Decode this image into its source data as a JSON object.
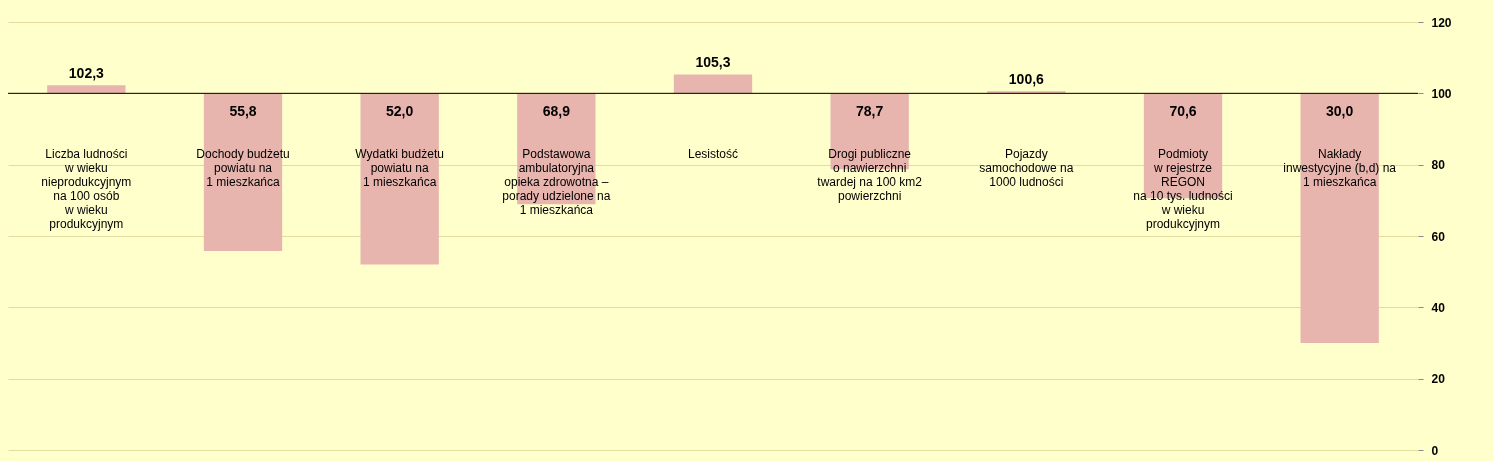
{
  "chart_data": {
    "type": "bar",
    "categories": [
      "Liczba ludności\nw wieku\nnieprodukcyjnym\nna 100 osób\nw wieku\nprodukcyjnym",
      "Dochody budżetu\npowiatu na\n1 mieszkańca",
      "Wydatki budżetu\npowiatu na\n1 mieszkańca",
      "Podstawowa\nambulatoryjna\nopieka zdrowotna –\nporady udzielone na\n1 mieszkańca",
      "Lesistość",
      "Drogi publiczne\no nawierzchni\ntwardej na 100 km2\npowierzchni",
      "Pojazdy\nsamochodowe na\n1000 ludności",
      "Podmioty\nw rejestrze\nREGON\nna 10 tys. ludności\nw wieku\nprodukcyjnym",
      "Nakłady\ninwestycyjne (b,d) na\n1 mieszkańca"
    ],
    "base": [
      100,
      100,
      100,
      100,
      100,
      100,
      100,
      100,
      100
    ],
    "values": [
      2.3,
      -44.2,
      -48.0,
      -31.1,
      5.3,
      -21.3,
      0.6,
      -29.4,
      -70.0
    ],
    "value_labels": [
      "102,3",
      "55,8",
      "52,0",
      "68,9",
      "105,3",
      "78,7",
      "100,6",
      "70,6",
      "30,0"
    ],
    "color": "#e8b4ae",
    "ylim": [
      0,
      120
    ],
    "yticks": [
      0,
      20,
      40,
      60,
      80,
      100,
      120
    ],
    "ref_lines": [
      {
        "axis": "y",
        "value": 100,
        "color": "#000000"
      }
    ],
    "grid": "y"
  }
}
